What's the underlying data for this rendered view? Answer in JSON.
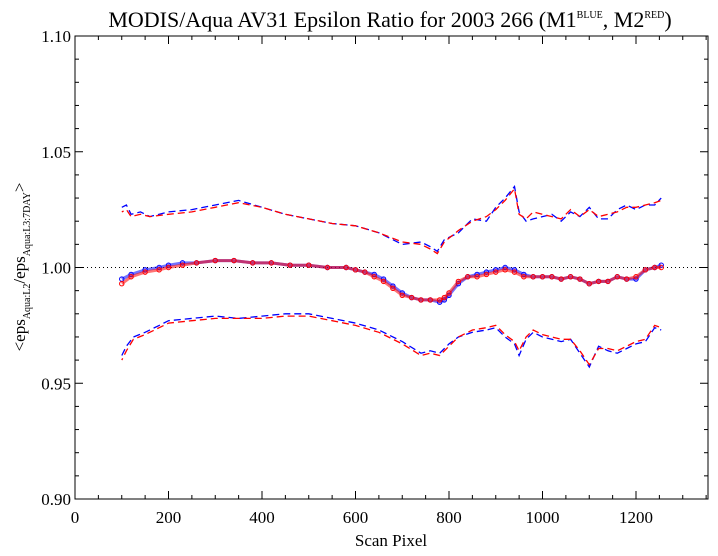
{
  "chart_data": {
    "type": "scatter",
    "title": {
      "text": "MODIS/Aqua AV31 Epsilon Ratio for 2003 266 (M1",
      "sup1": "BLUE",
      "mid": ", M2",
      "sup2": "RED",
      "end": ")"
    },
    "xlabel": "Scan Pixel",
    "ylabel": {
      "pre": "<eps",
      "sub1": "Aqua:L2",
      "mid": "/eps",
      "sub2": "Aqua:L3:7DAY",
      "end": ">"
    },
    "xlim": [
      0,
      1354
    ],
    "ylim": [
      0.9,
      1.1
    ],
    "xticks": [
      0,
      200,
      400,
      600,
      800,
      1000,
      1200
    ],
    "yticks": [
      0.9,
      0.95,
      1.0,
      1.05,
      1.1
    ],
    "xtick_labels": [
      "0",
      "200",
      "400",
      "600",
      "800",
      "1000",
      "1200"
    ],
    "ytick_labels": [
      "0.90",
      "0.95",
      "1.00",
      "1.05",
      "1.10"
    ],
    "reference_line": 1.0,
    "grid": false,
    "colors": {
      "M1": "#0000ff",
      "M2": "#ff0000"
    },
    "series": [
      {
        "role": "M1 mean",
        "color": "#0000ff",
        "marker": "point",
        "x": [
          100,
          120,
          150,
          180,
          200,
          230,
          260,
          300,
          340,
          380,
          420,
          460,
          500,
          540,
          580,
          600,
          620,
          640,
          660,
          680,
          700,
          720,
          740,
          760,
          780,
          790,
          800,
          820,
          840,
          860,
          880,
          900,
          920,
          940,
          960,
          980,
          1000,
          1020,
          1040,
          1060,
          1080,
          1100,
          1120,
          1140,
          1160,
          1180,
          1200,
          1220,
          1240,
          1254
        ],
        "y": [
          0.995,
          0.997,
          0.999,
          1.0,
          1.001,
          1.002,
          1.002,
          1.003,
          1.003,
          1.002,
          1.002,
          1.001,
          1.001,
          1.0,
          1.0,
          0.999,
          0.998,
          0.997,
          0.995,
          0.992,
          0.989,
          0.987,
          0.986,
          0.986,
          0.985,
          0.986,
          0.988,
          0.993,
          0.996,
          0.997,
          0.998,
          0.999,
          1.0,
          0.999,
          0.997,
          0.996,
          0.996,
          0.996,
          0.995,
          0.996,
          0.995,
          0.993,
          0.994,
          0.994,
          0.996,
          0.995,
          0.995,
          0.999,
          1.0,
          1.001
        ]
      },
      {
        "role": "M2 mean",
        "color": "#ff0000",
        "marker": "point",
        "x": [
          100,
          120,
          150,
          180,
          200,
          230,
          260,
          300,
          340,
          380,
          420,
          460,
          500,
          540,
          580,
          600,
          620,
          640,
          660,
          680,
          700,
          720,
          740,
          760,
          780,
          790,
          800,
          820,
          840,
          860,
          880,
          900,
          920,
          940,
          960,
          980,
          1000,
          1020,
          1040,
          1060,
          1080,
          1100,
          1120,
          1140,
          1160,
          1180,
          1200,
          1220,
          1240,
          1254
        ],
        "y": [
          0.993,
          0.996,
          0.998,
          0.999,
          1.0,
          1.001,
          1.002,
          1.003,
          1.003,
          1.002,
          1.002,
          1.001,
          1.001,
          1.0,
          1.0,
          0.999,
          0.998,
          0.996,
          0.994,
          0.991,
          0.988,
          0.987,
          0.986,
          0.986,
          0.986,
          0.987,
          0.989,
          0.994,
          0.996,
          0.996,
          0.997,
          0.998,
          0.999,
          0.998,
          0.996,
          0.996,
          0.996,
          0.996,
          0.995,
          0.996,
          0.995,
          0.993,
          0.994,
          0.994,
          0.996,
          0.995,
          0.996,
          0.999,
          1.0,
          1.0
        ]
      },
      {
        "role": "M1 upper bound",
        "color": "#0000ff",
        "style": "dashed",
        "x": [
          100,
          110,
          120,
          140,
          160,
          200,
          250,
          300,
          350,
          400,
          450,
          500,
          550,
          600,
          650,
          700,
          740,
          760,
          775,
          790,
          820,
          850,
          880,
          900,
          920,
          940,
          950,
          965,
          980,
          1000,
          1020,
          1040,
          1060,
          1080,
          1100,
          1120,
          1140,
          1160,
          1180,
          1200,
          1220,
          1240,
          1254
        ],
        "y": [
          1.026,
          1.027,
          1.023,
          1.024,
          1.022,
          1.024,
          1.025,
          1.027,
          1.029,
          1.026,
          1.023,
          1.021,
          1.019,
          1.018,
          1.015,
          1.01,
          1.011,
          1.009,
          1.007,
          1.012,
          1.015,
          1.021,
          1.02,
          1.026,
          1.03,
          1.035,
          1.024,
          1.02,
          1.021,
          1.022,
          1.023,
          1.02,
          1.024,
          1.022,
          1.026,
          1.021,
          1.021,
          1.025,
          1.027,
          1.025,
          1.027,
          1.027,
          1.03
        ]
      },
      {
        "role": "M2 upper bound",
        "color": "#ff0000",
        "style": "dashed",
        "x": [
          100,
          110,
          120,
          140,
          160,
          200,
          250,
          300,
          350,
          400,
          450,
          500,
          550,
          600,
          650,
          700,
          740,
          760,
          775,
          790,
          820,
          850,
          880,
          900,
          920,
          940,
          950,
          965,
          980,
          1000,
          1020,
          1040,
          1060,
          1080,
          1100,
          1120,
          1140,
          1160,
          1180,
          1200,
          1220,
          1240,
          1254
        ],
        "y": [
          1.024,
          1.025,
          1.022,
          1.023,
          1.022,
          1.023,
          1.024,
          1.026,
          1.028,
          1.026,
          1.023,
          1.021,
          1.019,
          1.018,
          1.015,
          1.011,
          1.01,
          1.008,
          1.006,
          1.011,
          1.016,
          1.02,
          1.022,
          1.025,
          1.029,
          1.034,
          1.023,
          1.021,
          1.024,
          1.023,
          1.022,
          1.021,
          1.025,
          1.022,
          1.025,
          1.022,
          1.023,
          1.024,
          1.026,
          1.026,
          1.027,
          1.028,
          1.029
        ]
      },
      {
        "role": "M1 lower bound",
        "color": "#0000ff",
        "style": "dashed",
        "x": [
          100,
          110,
          125,
          150,
          180,
          200,
          250,
          300,
          350,
          400,
          450,
          500,
          550,
          600,
          650,
          700,
          740,
          760,
          780,
          800,
          820,
          850,
          880,
          900,
          920,
          940,
          950,
          965,
          980,
          1000,
          1020,
          1040,
          1060,
          1080,
          1100,
          1120,
          1140,
          1160,
          1180,
          1200,
          1220,
          1240,
          1254
        ],
        "y": [
          0.962,
          0.966,
          0.97,
          0.972,
          0.975,
          0.977,
          0.978,
          0.979,
          0.978,
          0.979,
          0.98,
          0.98,
          0.978,
          0.976,
          0.973,
          0.968,
          0.963,
          0.964,
          0.963,
          0.967,
          0.97,
          0.972,
          0.973,
          0.974,
          0.97,
          0.967,
          0.962,
          0.969,
          0.972,
          0.97,
          0.969,
          0.968,
          0.969,
          0.963,
          0.957,
          0.966,
          0.964,
          0.963,
          0.965,
          0.967,
          0.968,
          0.974,
          0.973
        ]
      },
      {
        "role": "M2 lower bound",
        "color": "#ff0000",
        "style": "dashed",
        "x": [
          100,
          110,
          125,
          150,
          180,
          200,
          250,
          300,
          350,
          400,
          450,
          500,
          550,
          600,
          650,
          700,
          740,
          760,
          780,
          800,
          820,
          850,
          880,
          900,
          920,
          940,
          950,
          965,
          980,
          1000,
          1020,
          1040,
          1060,
          1080,
          1100,
          1120,
          1140,
          1160,
          1180,
          1200,
          1220,
          1240,
          1254
        ],
        "y": [
          0.96,
          0.964,
          0.969,
          0.971,
          0.974,
          0.976,
          0.977,
          0.978,
          0.978,
          0.978,
          0.979,
          0.979,
          0.977,
          0.975,
          0.972,
          0.967,
          0.962,
          0.963,
          0.962,
          0.966,
          0.97,
          0.973,
          0.974,
          0.975,
          0.971,
          0.968,
          0.964,
          0.97,
          0.973,
          0.971,
          0.97,
          0.969,
          0.969,
          0.964,
          0.958,
          0.965,
          0.965,
          0.964,
          0.966,
          0.968,
          0.969,
          0.975,
          0.974
        ]
      }
    ]
  }
}
